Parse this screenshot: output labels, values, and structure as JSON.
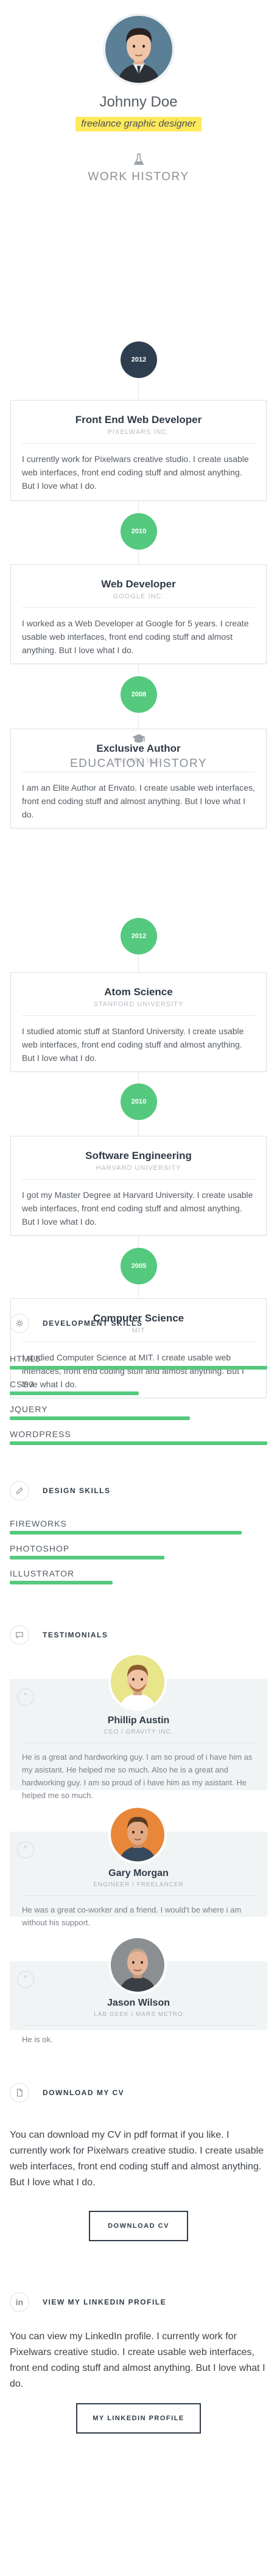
{
  "profile": {
    "name": "Johnny Doe",
    "tagline": "freelance graphic designer"
  },
  "work": {
    "title": "WORK HISTORY",
    "icon": "flask-icon",
    "entries": [
      {
        "year": "2012",
        "title": "Front End Web Developer",
        "org": "PIXELWARS INC.",
        "text": "I currently work for Pixelwars creative studio. I create usable web interfaces, front end coding stuff and almost anything. But I love what I do."
      },
      {
        "year": "2010",
        "title": "Web Developer",
        "org": "GOOGLE INC.",
        "text": "I worked as a Web Developer at Google for 5 years. I create usable web interfaces, front end coding stuff and almost anything. But I love what I do."
      },
      {
        "year": "2008",
        "title": "Exclusive Author",
        "org": "ENVATO INC.",
        "text": "I am an Elite Author at Envato. I create usable web interfaces, front end coding stuff and almost anything. But I love what I do."
      }
    ]
  },
  "education": {
    "title": "EDUCATION HISTORY",
    "icon": "graduation-cap-icon",
    "entries": [
      {
        "year": "2012",
        "title": "Atom Science",
        "org": "STANFORD UNIVERSITY",
        "text": "I studied atomic stuff at Stanford University. I create usable web interfaces, front end coding stuff and almost anything. But I love what I do."
      },
      {
        "year": "2010",
        "title": "Software Engineering",
        "org": "HARVARD UNIVERSITY",
        "text": "I got my Master Degree at Harvard University. I create usable web interfaces, front end coding stuff and almost anything. But I love what I do."
      },
      {
        "year": "2005",
        "title": "Computer Science",
        "org": "MIT",
        "text": "I studied Computer Science at MIT. I create usable web interfaces, front end coding stuff and almost anything. But I love what I do."
      }
    ]
  },
  "dev_skills": {
    "title": "DEVELOPMENT SKILLS",
    "icon": "gear-icon",
    "items": [
      {
        "label": "HTML5",
        "level": 100
      },
      {
        "label": "CSS3",
        "level": 50
      },
      {
        "label": "JQUERY",
        "level": 70
      },
      {
        "label": "WORDPRESS",
        "level": 100
      }
    ]
  },
  "design_skills": {
    "title": "DESIGN SKILLS",
    "icon": "pencil-icon",
    "items": [
      {
        "label": "FIREWORKS",
        "level": 90
      },
      {
        "label": "PHOTOSHOP",
        "level": 60
      },
      {
        "label": "ILLUSTRATOR",
        "level": 40
      }
    ]
  },
  "testimonials": {
    "title": "TESTIMONIALS",
    "icon": "speech-bubble-icon",
    "items": [
      {
        "name": "Phillip Austin",
        "role": "CEO / GRAVITY INC.",
        "text": "He is a great and hardworking guy. I am so proud of i have him as my asistant. He helped me so much. Also he is a great and hardworking guy. I am so proud of i have him as my asistant. He helped me so much."
      },
      {
        "name": "Gary Morgan",
        "role": "ENGINEER / FREELANCER",
        "text": "He was a great co-worker and a friend. I would't be where i am without his support."
      },
      {
        "name": "Jason Wilson",
        "role": "LAB GEEK / MARS METRO",
        "text": "He is ok."
      }
    ]
  },
  "cv": {
    "title": "DOWNLOAD MY CV",
    "icon": "document-icon",
    "text": "You can download my CV in pdf format if you like. I currently work for Pixelwars creative studio. I create usable web interfaces, front end coding stuff and almost anything. But I love what I do.",
    "button": "DOWNLOAD CV"
  },
  "linkedin": {
    "title": "VIEW MY LINKEDIN PROFILE",
    "icon": "linkedin-icon",
    "text": "You can view my LinkedIn profile. I currently work for Pixelwars creative studio. I create usable web interfaces, front end coding stuff and almost anything. But I love what I do.",
    "button": "MY LINKEDIN PROFILE"
  },
  "colors": {
    "accent": "#55c97e",
    "dark_node": "#2e3e4f",
    "highlight": "#ffe95c"
  }
}
